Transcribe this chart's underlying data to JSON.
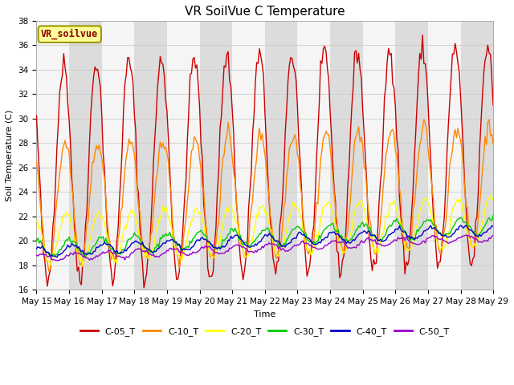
{
  "title": "VR SoilVue C Temperature",
  "xlabel": "Time",
  "ylabel": "Soil Temperature (C)",
  "ylim": [
    16,
    38
  ],
  "xlim_hours": 336,
  "xtick_labels": [
    "May 15",
    "May 16",
    "May 17",
    "May 18",
    "May 19",
    "May 20",
    "May 21",
    "May 22",
    "May 23",
    "May 24",
    "May 25",
    "May 26",
    "May 27",
    "May 28",
    "May 29"
  ],
  "annotation_text": "VR_soilvue",
  "annotation_bg": "#FFFF99",
  "annotation_border": "#999900",
  "annotation_color": "#880000",
  "legend_labels": [
    "C-05_T",
    "C-10_T",
    "C-20_T",
    "C-30_T",
    "C-40_T",
    "C-50_T"
  ],
  "line_colors": [
    "#CC0000",
    "#FF8800",
    "#FFFF00",
    "#00CC00",
    "#0000CC",
    "#9900CC"
  ],
  "title_fontsize": 11,
  "axis_label_fontsize": 8,
  "tick_fontsize": 7.5,
  "fig_bg": "#FFFFFF",
  "plot_bg": "#E8E8E8",
  "stripe_light": "#F5F5F5",
  "stripe_dark": "#DCDCDC",
  "grid_color": "#CCCCCC"
}
